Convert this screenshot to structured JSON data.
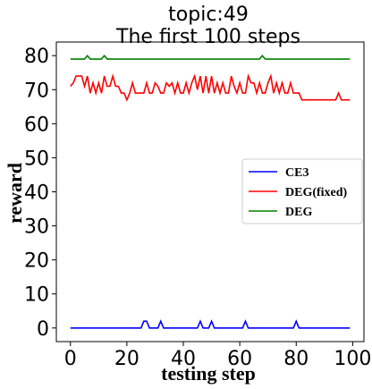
{
  "chart_data": {
    "type": "line",
    "title": [
      "topic:49",
      "The first 100 steps"
    ],
    "xlabel": "testing step",
    "ylabel": "reward",
    "xlim": [
      -5,
      104
    ],
    "ylim": [
      -4,
      84
    ],
    "xticks": [
      0,
      20,
      40,
      60,
      80,
      100
    ],
    "yticks": [
      0,
      10,
      20,
      30,
      40,
      50,
      60,
      70,
      80
    ],
    "grid": false,
    "legend_position": "center-right",
    "series": [
      {
        "name": "CE3",
        "color": "#0000ff",
        "x": [
          0,
          25,
          26,
          27,
          28,
          31,
          32,
          33,
          45,
          46,
          47,
          49,
          50,
          51,
          61,
          62,
          63,
          79,
          80,
          81,
          99
        ],
        "y": [
          0,
          0,
          2,
          2,
          0,
          0,
          2,
          0,
          0,
          2,
          0,
          0,
          2,
          0,
          0,
          2,
          0,
          0,
          2,
          0,
          0
        ]
      },
      {
        "name": "DEG(fixed)",
        "color": "#ff0000",
        "x": [
          0,
          1,
          2,
          3,
          4,
          5,
          6,
          7,
          8,
          9,
          10,
          11,
          12,
          13,
          14,
          15,
          16,
          17,
          18,
          19,
          20,
          21,
          22,
          23,
          24,
          25,
          26,
          27,
          28,
          29,
          30,
          31,
          32,
          33,
          34,
          35,
          36,
          37,
          38,
          39,
          40,
          41,
          42,
          43,
          44,
          45,
          46,
          47,
          48,
          49,
          50,
          51,
          52,
          53,
          54,
          55,
          56,
          57,
          58,
          59,
          60,
          61,
          62,
          63,
          64,
          65,
          66,
          67,
          68,
          69,
          70,
          71,
          72,
          73,
          74,
          75,
          76,
          77,
          78,
          79,
          80,
          81,
          82,
          83,
          84,
          85,
          86,
          87,
          88,
          89,
          90,
          91,
          92,
          93,
          94,
          95,
          96,
          97,
          98,
          99
        ],
        "y": [
          71,
          72,
          74,
          74,
          74,
          71,
          74,
          69,
          72,
          69,
          72,
          69,
          74,
          71,
          71,
          74,
          71,
          71,
          69,
          69,
          67,
          69,
          72,
          69,
          69,
          69,
          69,
          72,
          69,
          69,
          72,
          71,
          69,
          69,
          72,
          71,
          72,
          69,
          72,
          69,
          69,
          72,
          69,
          72,
          74,
          70,
          74,
          69,
          74,
          69,
          74,
          69,
          72,
          69,
          72,
          69,
          69,
          74,
          71,
          69,
          72,
          69,
          69,
          74,
          72,
          72,
          69,
          72,
          69,
          69,
          72,
          74,
          69,
          72,
          69,
          72,
          69,
          69,
          72,
          69,
          69,
          69,
          67,
          67,
          67,
          67,
          67,
          67,
          67,
          67,
          67,
          67,
          67,
          67,
          67,
          69,
          67,
          67,
          67,
          67
        ]
      },
      {
        "name": "DEG",
        "color": "#008000",
        "x": [
          0,
          5,
          6,
          7,
          11,
          12,
          13,
          67,
          68,
          69,
          99
        ],
        "y": [
          79,
          79,
          80,
          79,
          79,
          80,
          79,
          79,
          80,
          79,
          79
        ]
      }
    ]
  }
}
